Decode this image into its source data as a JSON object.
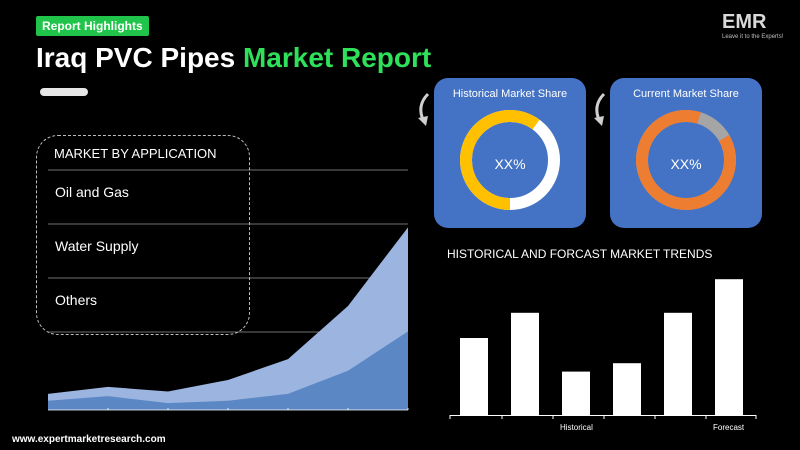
{
  "header": {
    "badge": "Report Highlights",
    "title_white": "Iraq PVC Pipes ",
    "title_green": "Market Report"
  },
  "logo": {
    "mark": "EMR",
    "tagline": "Leave it to the Experts!"
  },
  "application": {
    "heading": "MARKET BY APPLICATION",
    "items": [
      "Oil and Gas",
      "Water Supply",
      "Others"
    ]
  },
  "cards": {
    "historical": {
      "title": "Historical Market Share",
      "value": "XX%",
      "ring_color": "#ffc000",
      "rest_color": "#ffffff",
      "filled_fraction": 0.6
    },
    "current": {
      "title": "Current Market Share",
      "value": "XX%",
      "ring_color": "#ed7d31",
      "rest_color": "#a5a5a5",
      "filled_fraction": 0.88
    },
    "card_color": "#4472c4"
  },
  "chart_data": {
    "type": "bar",
    "title": "HISTORICAL AND FORCAST MARKET TRENDS",
    "categories": [
      "",
      "",
      "",
      "",
      "",
      ""
    ],
    "values": [
      55,
      73,
      31,
      37,
      73,
      97
    ],
    "ylim": [
      0,
      100
    ],
    "group_labels": [
      "Historical",
      "Forecast"
    ],
    "grid": false,
    "bar_color": "#ffffff"
  },
  "area_chart": {
    "type": "area",
    "series": [
      {
        "values": [
          7,
          10,
          8,
          13,
          22,
          45,
          79
        ],
        "color": "#9bb5e0"
      },
      {
        "values": [
          4,
          6,
          3,
          4,
          7,
          17,
          34
        ],
        "color": "#5b87c5"
      }
    ],
    "ylim": [
      0,
      80
    ],
    "grid": true
  },
  "footer": {
    "site": "www.expertmarketresearch.com"
  }
}
